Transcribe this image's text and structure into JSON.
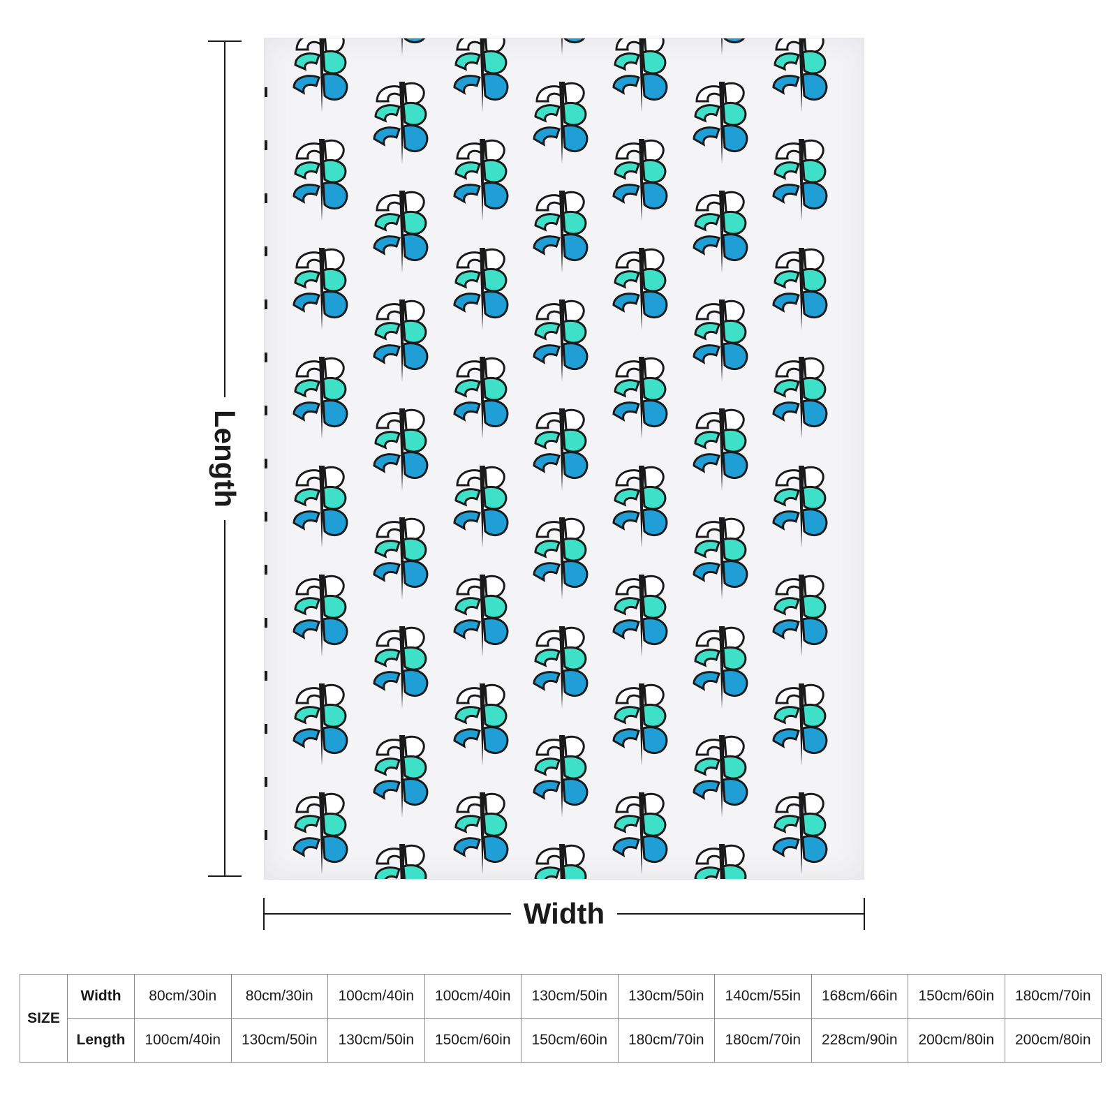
{
  "product_image": {
    "description_icon": "repeating-logo-pattern",
    "colors": {
      "teal": "#3fe0c8",
      "blue": "#1f9fd6",
      "white": "#ffffff",
      "outline": "#1a1a1a",
      "background": "#f4f4f6"
    }
  },
  "dimensions": {
    "length_label": "Length",
    "width_label": "Width"
  },
  "size_table": {
    "size_label": "SIZE",
    "row_labels": [
      "Width",
      "Length"
    ],
    "widths": [
      "80cm/30in",
      "80cm/30in",
      "100cm/40in",
      "100cm/40in",
      "130cm/50in",
      "130cm/50in",
      "140cm/55in",
      "168cm/66in",
      "150cm/60in",
      "180cm/70in"
    ],
    "lengths": [
      "100cm/40in",
      "130cm/50in",
      "130cm/50in",
      "150cm/60in",
      "150cm/60in",
      "180cm/70in",
      "180cm/70in",
      "228cm/90in",
      "200cm/80in",
      "200cm/80in"
    ]
  }
}
